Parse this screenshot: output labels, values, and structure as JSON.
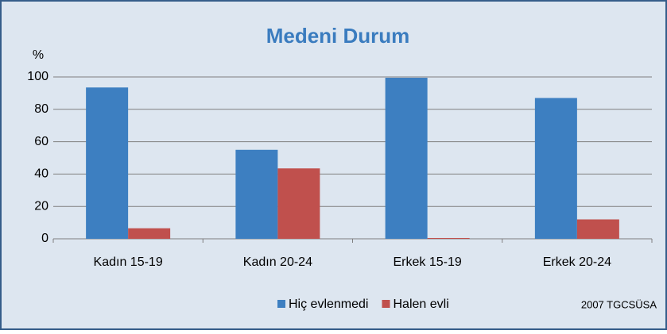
{
  "chart_data": {
    "type": "bar",
    "title": "Medeni Durum",
    "ylabel": "%",
    "categories": [
      "Kadın 15-19",
      "Kadın 20-24",
      "Erkek 15-19",
      "Erkek 20-24"
    ],
    "series": [
      {
        "name": "Hiç evlenmedi",
        "color": "#3d7fc1",
        "values": [
          93.5,
          55,
          99.5,
          87
        ]
      },
      {
        "name": "Halen evli",
        "color": "#c0504d",
        "values": [
          6.5,
          43.5,
          0.5,
          12
        ]
      }
    ],
    "ylim": [
      0,
      100
    ],
    "yticks": [
      0,
      20,
      40,
      60,
      80,
      100
    ],
    "grid": true,
    "legend": "bottom",
    "annotation": "2007 TGCSÜSA"
  }
}
